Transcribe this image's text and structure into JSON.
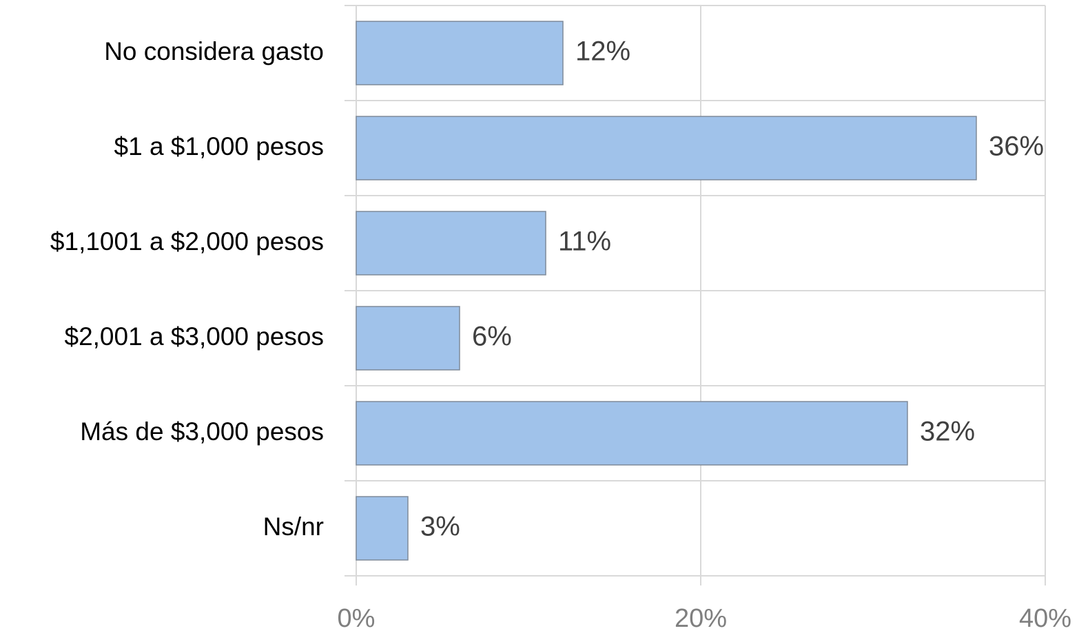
{
  "chart_data": {
    "type": "bar",
    "orientation": "horizontal",
    "categories": [
      "No considera gasto",
      "$1 a $1,000 pesos",
      "$1,1001 a $2,000 pesos",
      "$2,001 a $3,000 pesos",
      "Más de $3,000 pesos",
      "Ns/nr"
    ],
    "values": [
      12,
      36,
      11,
      6,
      32,
      3
    ],
    "value_labels": [
      "12%",
      "36%",
      "11%",
      "6%",
      "32%",
      "3%"
    ],
    "color": "#a0c2ea",
    "xlim": [
      0,
      40
    ],
    "xticks": [
      {
        "value": 0,
        "label": "0%"
      },
      {
        "value": 20,
        "label": "20%"
      },
      {
        "value": 40,
        "label": "40%"
      }
    ],
    "grid": true
  }
}
